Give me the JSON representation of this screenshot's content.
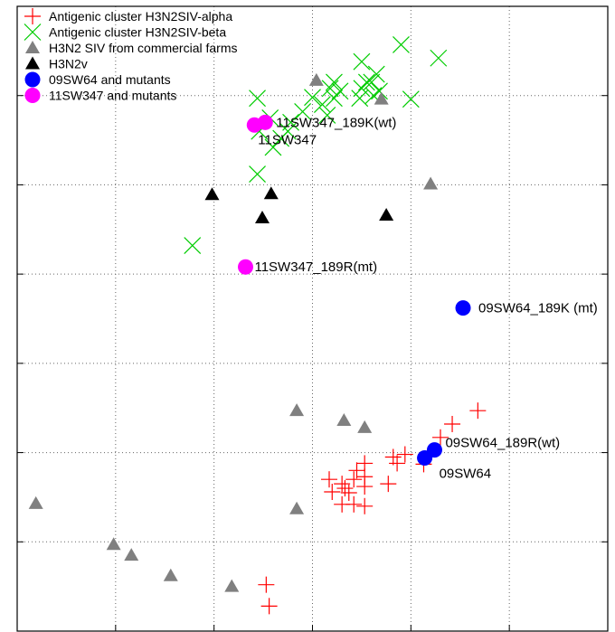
{
  "chart_data": {
    "type": "scatter",
    "title": "",
    "xlabel": "",
    "ylabel": "",
    "xlim": [
      0,
      6
    ],
    "ylim": [
      0,
      7
    ],
    "grid": true,
    "legend_position": "top-left",
    "series": [
      {
        "name": "Antigenic cluster H3N2SIV-alpha",
        "marker": "plus",
        "color": "#ff0000",
        "points": [
          [
            2.53,
            0.52
          ],
          [
            2.56,
            0.28
          ],
          [
            3.17,
            1.7
          ],
          [
            3.2,
            1.56
          ],
          [
            3.3,
            1.65
          ],
          [
            3.33,
            1.6
          ],
          [
            3.37,
            1.55
          ],
          [
            3.42,
            1.7
          ],
          [
            3.42,
            1.42
          ],
          [
            3.53,
            1.88
          ],
          [
            3.53,
            1.73
          ],
          [
            3.53,
            1.62
          ],
          [
            3.53,
            1.4
          ],
          [
            3.77,
            1.65
          ],
          [
            3.82,
            1.95
          ],
          [
            3.86,
            1.88
          ],
          [
            3.94,
            1.98
          ],
          [
            4.13,
            1.87
          ],
          [
            4.3,
            2.17
          ],
          [
            4.42,
            2.32
          ],
          [
            4.68,
            2.47
          ],
          [
            3.3,
            1.42
          ],
          [
            3.45,
            1.8
          ]
        ]
      },
      {
        "name": "Antigenic cluster H3N2SIV-beta",
        "marker": "x",
        "color": "#00cc00",
        "points": [
          [
            1.78,
            4.32
          ],
          [
            2.44,
            5.12
          ],
          [
            2.44,
            5.97
          ],
          [
            2.46,
            5.6
          ],
          [
            2.57,
            5.75
          ],
          [
            2.6,
            5.42
          ],
          [
            2.68,
            5.52
          ],
          [
            2.78,
            5.7
          ],
          [
            2.9,
            5.82
          ],
          [
            3.0,
            5.98
          ],
          [
            3.1,
            5.9
          ],
          [
            3.18,
            6.08
          ],
          [
            3.22,
            5.97
          ],
          [
            3.28,
            6.05
          ],
          [
            3.48,
            5.97
          ],
          [
            3.5,
            6.08
          ],
          [
            3.55,
            6.15
          ],
          [
            3.62,
            6.0
          ],
          [
            3.6,
            6.15
          ],
          [
            3.65,
            6.24
          ],
          [
            3.68,
            6.05
          ],
          [
            3.5,
            6.38
          ],
          [
            3.9,
            6.57
          ],
          [
            4.0,
            5.96
          ],
          [
            4.28,
            6.42
          ],
          [
            3.15,
            5.78
          ],
          [
            3.22,
            6.15
          ],
          [
            2.75,
            5.6
          ]
        ]
      },
      {
        "name": "H3N2 SIV from commercial farms",
        "marker": "triangle",
        "color": "#808080",
        "points": [
          [
            0.19,
            1.43
          ],
          [
            0.98,
            0.97
          ],
          [
            1.16,
            0.85
          ],
          [
            1.56,
            0.62
          ],
          [
            2.18,
            0.5
          ],
          [
            2.84,
            1.37
          ],
          [
            2.84,
            2.47
          ],
          [
            3.32,
            2.36
          ],
          [
            3.53,
            2.28
          ],
          [
            3.7,
            5.96
          ],
          [
            3.04,
            6.17
          ],
          [
            4.2,
            5.01
          ]
        ]
      },
      {
        "name": "H3N2v",
        "marker": "triangle",
        "color": "#000000",
        "points": [
          [
            1.98,
            4.89
          ],
          [
            2.58,
            4.9
          ],
          [
            2.49,
            4.63
          ],
          [
            3.75,
            4.66
          ]
        ]
      },
      {
        "name": "09SW64 and mutants",
        "marker": "circle",
        "color": "#0000ff",
        "points": [
          [
            4.14,
            1.94
          ],
          [
            4.24,
            2.03
          ],
          [
            4.53,
            3.62
          ]
        ],
        "point_labels": [
          "09SW64",
          "09SW64_189R(wt)",
          "09SW64_189K (mt)"
        ]
      },
      {
        "name": "11SW347 and mutants",
        "marker": "circle",
        "color": "#ff00ff",
        "points": [
          [
            2.41,
            5.67
          ],
          [
            2.52,
            5.7
          ],
          [
            2.32,
            4.08
          ]
        ],
        "point_labels": [
          "11SW347",
          "11SW347_189K(wt)",
          "11SW347_189R(mt)"
        ]
      }
    ]
  }
}
